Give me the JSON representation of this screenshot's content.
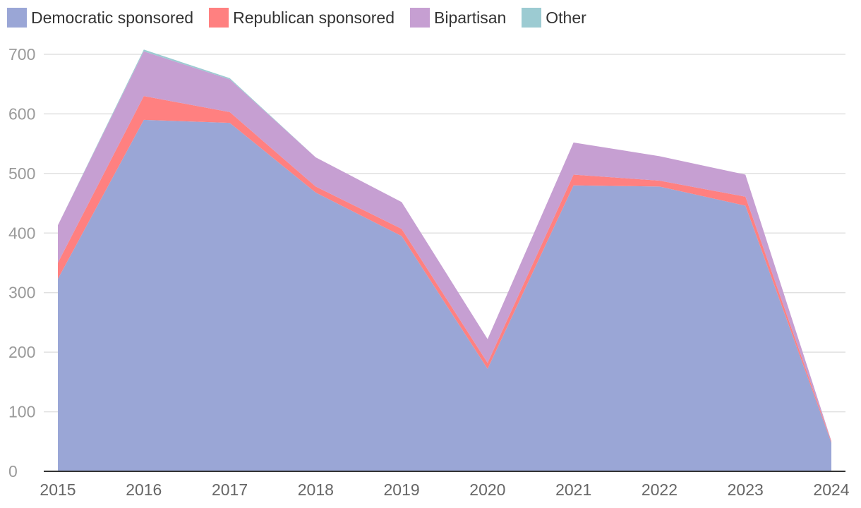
{
  "chart_data": {
    "type": "area",
    "stacked": true,
    "title": "",
    "xlabel": "",
    "ylabel": "",
    "categories": [
      "2015",
      "2016",
      "2017",
      "2018",
      "2019",
      "2020",
      "2021",
      "2022",
      "2023",
      "2024"
    ],
    "ylim": [
      0,
      700
    ],
    "yticks": [
      "0",
      "100",
      "200",
      "300",
      "400",
      "500",
      "600",
      "700"
    ],
    "grid": true,
    "legend_position": "top-left",
    "series": [
      {
        "name": "Democratic sponsored",
        "color": "#9aa6d6",
        "values": [
          323,
          590,
          585,
          468,
          395,
          172,
          480,
          478,
          446,
          48
        ]
      },
      {
        "name": "Republican sponsored",
        "color": "#ff8080",
        "values": [
          27,
          40,
          18,
          10,
          12,
          10,
          18,
          10,
          15,
          2
        ]
      },
      {
        "name": "Bipartisan",
        "color": "#c69fd2",
        "values": [
          63,
          75,
          55,
          49,
          45,
          40,
          54,
          41,
          37,
          1
        ]
      },
      {
        "name": "Other",
        "color": "#9ccbd2",
        "values": [
          0,
          3,
          2,
          0,
          0,
          0,
          0,
          0,
          0,
          0
        ]
      }
    ]
  }
}
